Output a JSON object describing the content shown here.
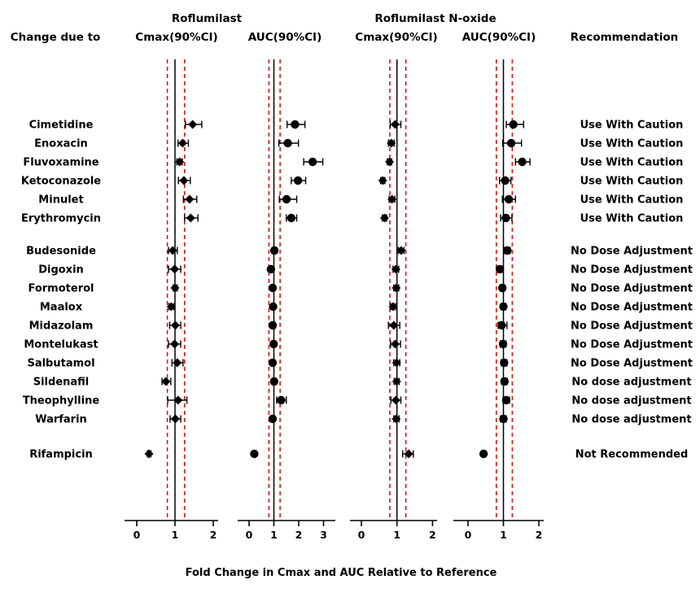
{
  "colors": {
    "marker": "#000000",
    "reference_line": "#000000",
    "equivalence_bounds": "#e00000",
    "text": "#000000",
    "background": "#ffffff"
  },
  "chart_data": {
    "type": "forest",
    "group_headers": [
      {
        "label": "Roflumilast"
      },
      {
        "label": "Roflumilast N-oxide"
      }
    ],
    "left_column_header": "Change due to",
    "right_column_header": "Recommendation",
    "xlabel": "Fold Change in Cmax and AUC Relative to Reference",
    "reference_value": 1.0,
    "bioequivalence_bounds": [
      0.8,
      1.25
    ],
    "panels": [
      {
        "header": "Cmax(90%CI)",
        "analyte": "Roflumilast",
        "metric": "Cmax",
        "marker": "diamond",
        "ticks": [
          0,
          1,
          2
        ]
      },
      {
        "header": "AUC(90%CI)",
        "analyte": "Roflumilast",
        "metric": "AUC",
        "marker": "circle",
        "ticks": [
          0,
          1,
          2,
          3
        ]
      },
      {
        "header": "Cmax(90%CI)",
        "analyte": "Roflumilast N-oxide",
        "metric": "Cmax",
        "marker": "diamond",
        "ticks": [
          0,
          1,
          2
        ]
      },
      {
        "header": "AUC(90%CI)",
        "analyte": "Roflumilast N-oxide",
        "metric": "AUC",
        "marker": "circle",
        "ticks": [
          0,
          1,
          2
        ]
      }
    ],
    "rows": [
      {
        "drug": "Cimetidine",
        "recommendation": "Use With Caution",
        "values": [
          [
            1.46,
            1.27,
            1.7
          ],
          [
            1.85,
            1.53,
            2.25
          ],
          [
            0.95,
            0.81,
            1.11
          ],
          [
            1.28,
            1.08,
            1.57
          ]
        ]
      },
      {
        "drug": "Enoxacin",
        "recommendation": "Use With Caution",
        "values": [
          [
            1.2,
            1.08,
            1.35
          ],
          [
            1.56,
            1.2,
            1.99
          ],
          [
            0.84,
            0.76,
            0.92
          ],
          [
            1.22,
            0.98,
            1.51
          ]
        ]
      },
      {
        "drug": "Fluvoxamine",
        "recommendation": "Use With Caution",
        "values": [
          [
            1.12,
            1.05,
            1.19
          ],
          [
            2.56,
            2.2,
            2.97
          ],
          [
            0.79,
            0.73,
            0.85
          ],
          [
            1.53,
            1.34,
            1.75
          ]
        ]
      },
      {
        "drug": "Ketoconazole",
        "recommendation": "Use With Caution",
        "values": [
          [
            1.23,
            1.09,
            1.4
          ],
          [
            1.97,
            1.7,
            2.28
          ],
          [
            0.6,
            0.54,
            0.66
          ],
          [
            1.05,
            0.89,
            1.21
          ]
        ]
      },
      {
        "drug": "Minulet",
        "recommendation": "Use With Caution",
        "values": [
          [
            1.38,
            1.22,
            1.57
          ],
          [
            1.51,
            1.22,
            1.92
          ],
          [
            0.86,
            0.78,
            0.94
          ],
          [
            1.15,
            0.97,
            1.34
          ]
        ]
      },
      {
        "drug": "Erythromycin",
        "recommendation": "Use With Caution",
        "values": [
          [
            1.41,
            1.25,
            1.6
          ],
          [
            1.7,
            1.5,
            1.92
          ],
          [
            0.65,
            0.59,
            0.71
          ],
          [
            1.07,
            0.92,
            1.24
          ]
        ]
      },
      {
        "drug": "Budesonide",
        "recommendation": "No Dose Adjustment",
        "values": [
          [
            0.94,
            0.83,
            1.06
          ],
          [
            1.02,
            0.93,
            1.11
          ],
          [
            1.12,
            1.04,
            1.2
          ],
          [
            1.11,
            1.03,
            1.19
          ]
        ]
      },
      {
        "drug": "Digoxin",
        "recommendation": "No Dose Adjustment",
        "values": [
          [
            0.99,
            0.83,
            1.15
          ],
          [
            0.88,
            0.81,
            0.96
          ],
          [
            0.97,
            0.89,
            1.05
          ],
          [
            0.9,
            0.83,
            0.98
          ]
        ]
      },
      {
        "drug": "Formoterol",
        "recommendation": "No Dose Adjustment",
        "values": [
          [
            1.0,
            0.95,
            1.06
          ],
          [
            0.95,
            0.89,
            1.02
          ],
          [
            0.98,
            0.91,
            1.05
          ],
          [
            0.97,
            0.9,
            1.04
          ]
        ]
      },
      {
        "drug": "Maalox",
        "recommendation": "No Dose Adjustment",
        "values": [
          [
            0.9,
            0.84,
            0.97
          ],
          [
            0.97,
            0.9,
            1.04
          ],
          [
            0.89,
            0.82,
            0.96
          ],
          [
            1.0,
            0.93,
            1.07
          ]
        ]
      },
      {
        "drug": "Midazolam",
        "recommendation": "No Dose Adjustment",
        "values": [
          [
            1.01,
            0.86,
            1.15
          ],
          [
            0.95,
            0.86,
            1.05
          ],
          [
            0.91,
            0.76,
            1.08
          ],
          [
            0.95,
            0.85,
            1.1
          ]
        ]
      },
      {
        "drug": "Montelukast",
        "recommendation": "No Dose Adjustment",
        "values": [
          [
            0.99,
            0.83,
            1.15
          ],
          [
            0.99,
            0.91,
            1.07
          ],
          [
            0.95,
            0.82,
            1.1
          ],
          [
            0.99,
            0.91,
            1.07
          ]
        ]
      },
      {
        "drug": "Salbutamol",
        "recommendation": "No Dose Adjustment",
        "values": [
          [
            1.06,
            0.92,
            1.21
          ],
          [
            0.95,
            0.88,
            1.03
          ],
          [
            0.99,
            0.91,
            1.08
          ],
          [
            1.02,
            0.94,
            1.1
          ]
        ]
      },
      {
        "drug": "Sildenafil",
        "recommendation": "No dose adjustment",
        "values": [
          [
            0.76,
            0.66,
            0.89
          ],
          [
            1.01,
            0.93,
            1.1
          ],
          [
            0.99,
            0.92,
            1.06
          ],
          [
            1.03,
            0.95,
            1.11
          ]
        ]
      },
      {
        "drug": "Theophylline",
        "recommendation": "No dose adjustment",
        "values": [
          [
            1.08,
            0.81,
            1.31
          ],
          [
            1.29,
            1.11,
            1.5
          ],
          [
            0.97,
            0.83,
            1.11
          ],
          [
            1.08,
            0.99,
            1.17
          ]
        ]
      },
      {
        "drug": "Warfarin",
        "recommendation": "No dose adjustment",
        "values": [
          [
            1.01,
            0.87,
            1.15
          ],
          [
            0.95,
            0.87,
            1.03
          ],
          [
            0.98,
            0.91,
            1.06
          ],
          [
            1.0,
            0.92,
            1.08
          ]
        ]
      },
      {
        "drug": "Rifampicin",
        "recommendation": "Not Recommended",
        "values": [
          [
            0.32,
            0.28,
            0.37
          ],
          [
            0.21,
            0.18,
            0.25
          ],
          [
            1.33,
            1.16,
            1.46
          ],
          [
            0.44,
            0.39,
            0.5
          ]
        ]
      }
    ]
  }
}
